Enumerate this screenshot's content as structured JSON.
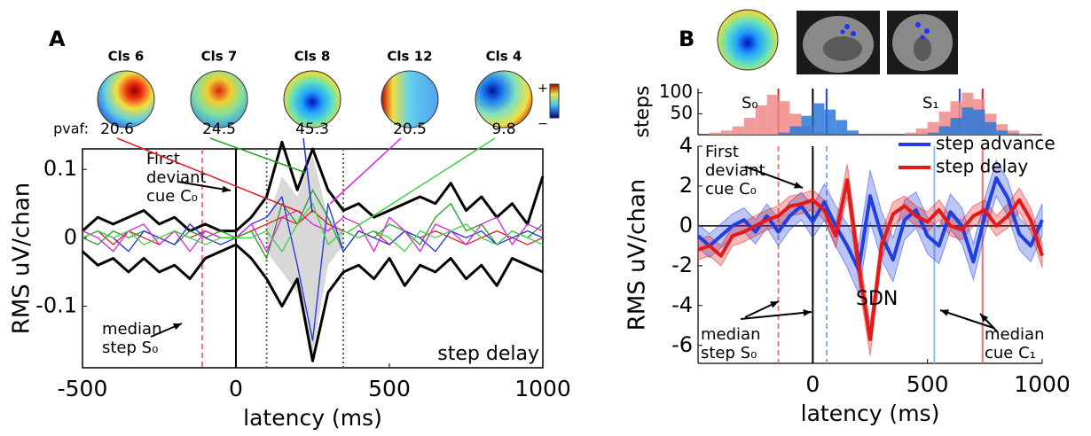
{
  "chart_data": [
    {
      "type": "line",
      "label": "A",
      "xlabel": "latency (ms)",
      "ylabel": "RMS uV/chan",
      "box": true,
      "xlim": [
        -500,
        1000
      ],
      "ylim": [
        -0.19,
        0.13
      ],
      "xticks": [
        -500,
        0,
        500,
        1000
      ],
      "yticks": [
        -0.1,
        0,
        0.1
      ],
      "pvaf_label": "pvaf:",
      "topographies": [
        {
          "label": "Cls 6",
          "pvaf": 20.6,
          "color": "#e02020"
        },
        {
          "label": "Cls 7",
          "pvaf": 24.5,
          "color": "#22a022"
        },
        {
          "label": "Cls 8",
          "pvaf": 45.3,
          "color": "#2030e0"
        },
        {
          "label": "Cls 12",
          "pvaf": 20.5,
          "color": "#e020e0"
        },
        {
          "label": "Cls 4",
          "pvaf": 9.8,
          "color": "#40d040"
        }
      ],
      "colorbar": [
        "+",
        "−"
      ],
      "x": [
        -500,
        -450,
        -400,
        -350,
        -300,
        -250,
        -200,
        -150,
        -100,
        -50,
        0,
        50,
        100,
        150,
        200,
        250,
        300,
        350,
        400,
        450,
        500,
        550,
        600,
        650,
        700,
        750,
        800,
        850,
        900,
        950,
        1000
      ],
      "band": {
        "color": "#d8d8d8",
        "x": [
          100,
          150,
          200,
          250,
          300,
          350
        ],
        "upper": [
          0.02,
          0.09,
          0.06,
          0.12,
          0.03,
          0.01
        ],
        "lower": [
          -0.02,
          -0.05,
          -0.08,
          -0.17,
          -0.04,
          -0.01
        ]
      },
      "series": [
        {
          "color": "#000000",
          "width": 3,
          "values": [
            0.01,
            0.03,
            0.02,
            0.03,
            0.04,
            0.02,
            0.03,
            0.01,
            0.02,
            0.01,
            0.01,
            0.03,
            0.06,
            0.14,
            0.07,
            0.13,
            0.07,
            0.04,
            0.05,
            0.03,
            0.04,
            0.05,
            0.06,
            0.05,
            0.08,
            0.04,
            0.06,
            0.03,
            0.05,
            0.02,
            0.09
          ]
        },
        {
          "color": "#000000",
          "width": 3,
          "values": [
            -0.02,
            -0.04,
            -0.03,
            -0.05,
            -0.03,
            -0.05,
            -0.04,
            -0.06,
            -0.03,
            -0.02,
            -0.01,
            -0.03,
            -0.06,
            -0.1,
            -0.06,
            -0.18,
            -0.08,
            -0.05,
            -0.04,
            -0.06,
            -0.03,
            -0.07,
            -0.04,
            -0.05,
            -0.03,
            -0.06,
            -0.04,
            -0.07,
            -0.03,
            -0.04,
            -0.05
          ]
        },
        {
          "color": "#e02020",
          "width": 1.3,
          "values": [
            0,
            0.01,
            -0.01,
            0.01,
            0,
            -0.01,
            0.01,
            0,
            0.01,
            0,
            0,
            0.01,
            0.02,
            0.03,
            0.02,
            0.04,
            0.02,
            0.01,
            0,
            0.01,
            -0.01,
            0.01,
            0,
            0.01,
            0,
            -0.01,
            0,
            0.01,
            0,
            -0.01,
            0
          ]
        },
        {
          "color": "#22a022",
          "width": 1.3,
          "values": [
            0,
            -0.01,
            0.01,
            0,
            0.01,
            0,
            -0.01,
            0.01,
            0,
            0.01,
            0,
            0.01,
            -0.03,
            0.05,
            0.02,
            0.07,
            0.03,
            -0.02,
            0.01,
            0,
            0.02,
            0.01,
            -0.01,
            0.03,
            0.05,
            0.01,
            0.02,
            -0.01,
            0.01,
            0,
            0.02
          ]
        },
        {
          "color": "#2030e0",
          "width": 1.3,
          "values": [
            0,
            0.01,
            0,
            -0.02,
            0.01,
            0,
            -0.01,
            0.02,
            0,
            -0.01,
            0,
            0.02,
            0.03,
            0.06,
            -0.04,
            -0.15,
            0.05,
            -0.02,
            0.01,
            0,
            -0.01,
            0.01,
            0,
            -0.02,
            0.01,
            0,
            0.01,
            -0.01,
            0,
            0.01,
            0
          ]
        },
        {
          "color": "#e020e0",
          "width": 1.3,
          "values": [
            0.01,
            0,
            -0.02,
            0.01,
            0.02,
            -0.01,
            0.01,
            -0.02,
            0.01,
            0,
            0,
            0.02,
            -0.02,
            0.03,
            0.04,
            0.02,
            0.01,
            0.03,
            0.02,
            -0.02,
            0.03,
            0.01,
            -0.02,
            0.02,
            0.01,
            -0.01,
            0.02,
            0.03,
            -0.01,
            0.02,
            0.01
          ]
        },
        {
          "color": "#40d040",
          "width": 1.3,
          "values": [
            0,
            0.01,
            0,
            0.01,
            -0.01,
            0,
            0.01,
            0,
            -0.01,
            0,
            0,
            0,
            0.01,
            -0.02,
            0.02,
            0.05,
            -0.01,
            0.01,
            0,
            0.01,
            0,
            -0.02,
            0.01,
            0,
            0.01,
            0.02,
            0,
            -0.01,
            0.01,
            0,
            -0.01
          ]
        }
      ],
      "markers": [
        {
          "x": 0,
          "color": "#000000",
          "style": "solid"
        },
        {
          "x": -110,
          "color": "#ff5a8c",
          "style": "dashed"
        },
        {
          "x": 100,
          "color": "#555555",
          "style": "dotted"
        },
        {
          "x": 350,
          "color": "#555555",
          "style": "dotted"
        }
      ],
      "annotations": [
        {
          "text": [
            "First",
            "deviant",
            "cue C₀"
          ]
        },
        {
          "text": [
            "median",
            "step S₀"
          ]
        },
        {
          "text": [
            "step delay"
          ]
        }
      ]
    },
    {
      "type": "line",
      "label": "B",
      "xlabel": "latency (ms)",
      "ylabel": "RMS uV/chan",
      "zero_line": true,
      "legend": "upper right",
      "xlim": [
        -500,
        1000
      ],
      "ylim": [
        -6.9,
        4
      ],
      "xticks": [
        0,
        500,
        1000
      ],
      "yticks": [
        -6,
        -4,
        -2,
        0,
        2,
        4
      ],
      "x": [
        -500,
        -450,
        -400,
        -350,
        -300,
        -250,
        -200,
        -150,
        -100,
        -50,
        0,
        50,
        100,
        150,
        200,
        250,
        300,
        350,
        400,
        450,
        500,
        550,
        600,
        650,
        700,
        750,
        800,
        850,
        900,
        950,
        1000
      ],
      "series": [
        {
          "name": "step advance",
          "color": "#1f3fe0",
          "width": 4,
          "values": [
            -0.5,
            -1,
            -0.5,
            0,
            0.3,
            -0.3,
            0.5,
            -0.3,
            0.5,
            1,
            0.2,
            1.2,
            0,
            -1,
            -2.2,
            1.5,
            -0.5,
            -1.7,
            0.3,
            0.8,
            -0.5,
            -1,
            0.7,
            0,
            -1.8,
            0.5,
            2.4,
            1.4,
            -0.4,
            -1,
            0.3
          ],
          "errors": [
            0.6,
            0.6,
            0.6,
            0.6,
            0.6,
            0.6,
            0.6,
            0.7,
            0.7,
            0.7,
            0.8,
            0.9,
            1,
            1.1,
            1.2,
            1.3,
            1.2,
            1.1,
            1,
            0.9,
            0.9,
            0.9,
            0.9,
            0.9,
            0.9,
            0.9,
            0.9,
            0.9,
            0.8,
            0.8,
            0.8
          ]
        },
        {
          "name": "step delay",
          "color": "#e41a1a",
          "width": 4,
          "values": [
            -1.2,
            -1,
            -1.5,
            -0.5,
            -0.3,
            0,
            0.3,
            0.5,
            1,
            1.1,
            1.3,
            0.8,
            -0.5,
            2.3,
            -2,
            -5.7,
            -1,
            0.6,
            1,
            0.5,
            0.2,
            0.8,
            0,
            -0.2,
            0.5,
            0.8,
            0,
            0.5,
            1.3,
            0.3,
            -1.5
          ],
          "errors": [
            0.5,
            0.5,
            0.5,
            0.5,
            0.5,
            0.5,
            0.5,
            0.5,
            0.5,
            0.5,
            0.5,
            0.5,
            0.6,
            0.8,
            0.8,
            0.8,
            0.7,
            0.6,
            0.5,
            0.5,
            0.5,
            0.5,
            0.5,
            0.5,
            0.5,
            0.5,
            0.5,
            0.6,
            0.6,
            0.6,
            0.6
          ]
        }
      ],
      "markers": [
        {
          "x": 0,
          "color": "#000000",
          "style": "solid"
        },
        {
          "x": -150,
          "color": "#f07070",
          "style": "dashed"
        },
        {
          "x": 60,
          "color": "#70a8f0",
          "style": "dashed"
        },
        {
          "x": 530,
          "color": "#8ac0f5",
          "style": "solid"
        },
        {
          "x": 740,
          "color": "#f07070",
          "style": "solid"
        }
      ],
      "annotations": [
        {
          "text": [
            "First",
            "deviant",
            "cue C₀"
          ]
        },
        {
          "text": [
            "median",
            "step S₀"
          ]
        },
        {
          "text": [
            "median",
            "cue C₁"
          ]
        },
        {
          "text": [
            "SDN"
          ],
          "color": "#e41a1a"
        }
      ]
    },
    {
      "type": "histogram",
      "ylabel": "steps",
      "xlim": [
        -500,
        1000
      ],
      "ylim": [
        0,
        110
      ],
      "yticks": [
        50,
        100
      ],
      "bins": [
        -500,
        -450,
        -400,
        -350,
        -300,
        -250,
        -200,
        -150,
        -100,
        -50,
        0,
        50,
        100,
        150,
        200,
        250,
        300,
        350,
        400,
        450,
        500,
        550,
        600,
        650,
        700,
        750,
        800,
        850,
        900,
        950,
        1000
      ],
      "series": [
        {
          "color": "#f08a8a",
          "values": [
            0,
            5,
            10,
            20,
            40,
            70,
            95,
            80,
            50,
            20,
            5,
            0,
            0,
            0,
            0,
            0,
            0,
            0,
            5,
            15,
            30,
            55,
            80,
            100,
            85,
            50,
            25,
            10,
            3,
            0
          ]
        },
        {
          "color": "#2a78d8",
          "values": [
            0,
            0,
            0,
            0,
            0,
            0,
            0,
            5,
            20,
            45,
            75,
            60,
            35,
            10,
            0,
            0,
            0,
            0,
            0,
            0,
            5,
            20,
            40,
            65,
            60,
            30,
            10,
            3,
            0,
            0
          ]
        }
      ],
      "markers": [
        {
          "x": 0,
          "color": "#000000",
          "style": "solid"
        },
        {
          "x": -150,
          "color": "#e41a1a",
          "style": "solid"
        },
        {
          "x": 60,
          "color": "#1f3fe0",
          "style": "solid"
        },
        {
          "x": 640,
          "color": "#1f3fe0",
          "style": "solid"
        },
        {
          "x": 740,
          "color": "#e41a1a",
          "style": "solid"
        }
      ],
      "annotations": [
        {
          "text": [
            "S₀"
          ]
        },
        {
          "text": [
            "S₁"
          ]
        }
      ]
    }
  ]
}
